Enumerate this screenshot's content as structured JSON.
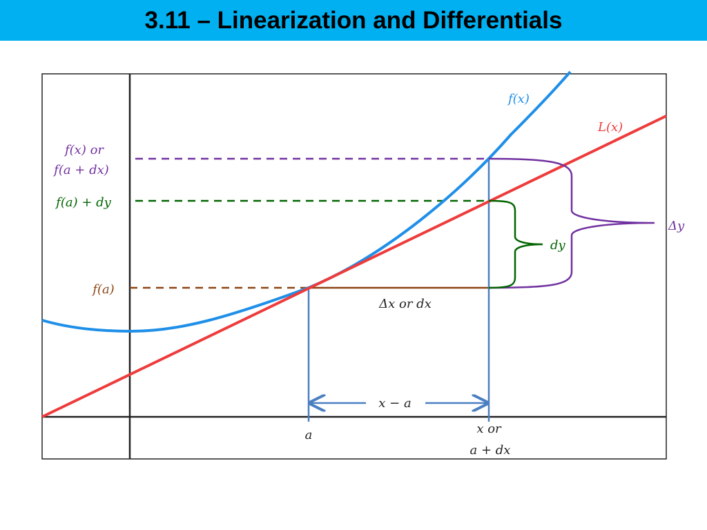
{
  "title": "3.11 – Linearization and Differentials",
  "colors": {
    "title_bar": "#00b0f0",
    "curve": "#1f8fe8",
    "tangent": "#ee3b3b",
    "delta_y": "#7030a0",
    "dy": "#006400",
    "dx": "#8b4513",
    "vertical": "#4a7fc1",
    "axes": "#222222"
  },
  "labels": {
    "fx": "f(x)",
    "lx": "L(x)",
    "fx_or": "f(x) or",
    "fadx": "f(a + dx)",
    "fa_dy": "f(a) + dy",
    "fa": "f(a)",
    "delta_y": "Δy",
    "dy": "dy",
    "dx": "Δx or dx",
    "x_minus_a": "x − a",
    "a": "a",
    "x_or": "x or",
    "a_dx": "a + dx"
  }
}
